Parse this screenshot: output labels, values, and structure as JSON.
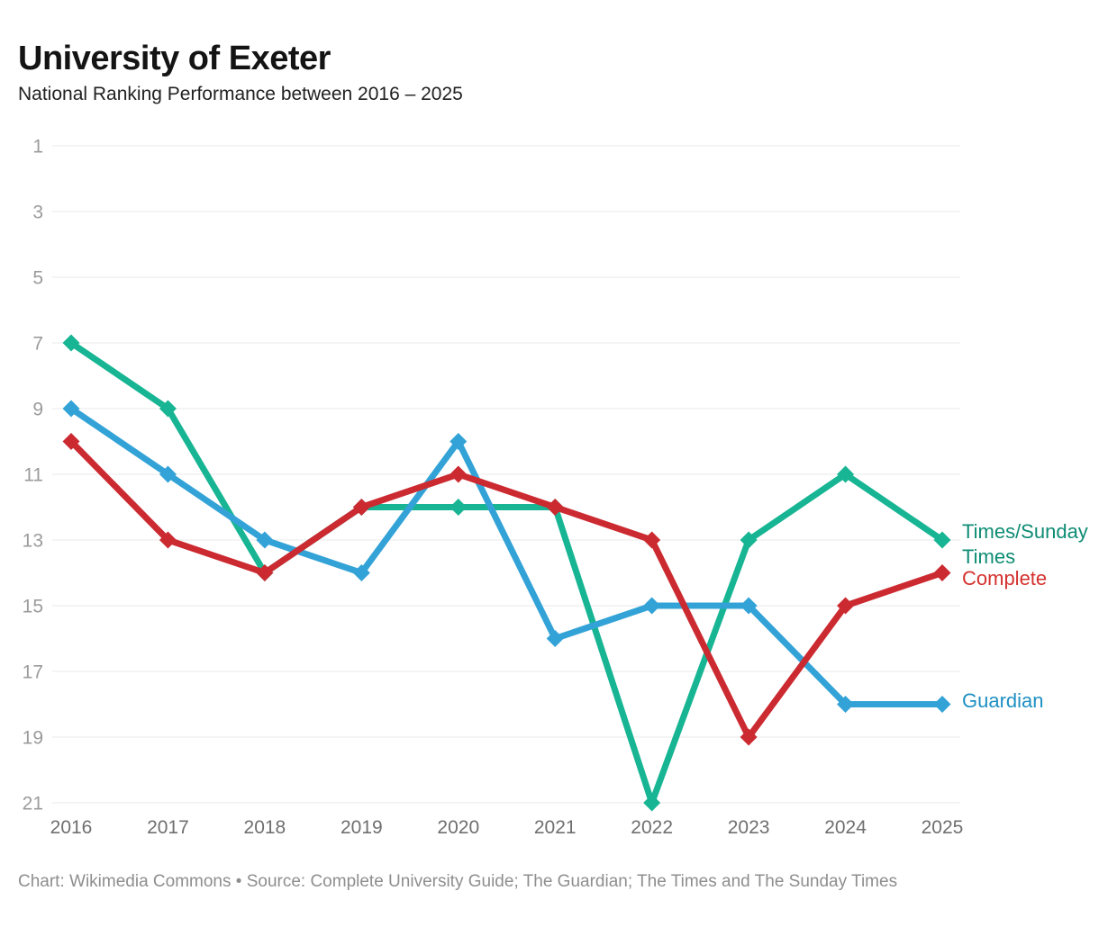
{
  "header": {
    "title": "University of Exeter",
    "subtitle": "National Ranking Performance between 2016 – 2025"
  },
  "chart_data": {
    "type": "line",
    "title": "University of Exeter",
    "subtitle": "National Ranking Performance between 2016 – 2025",
    "x": [
      2016,
      2017,
      2018,
      2019,
      2020,
      2021,
      2022,
      2023,
      2024,
      2025
    ],
    "series": [
      {
        "name": "Times/Sunday Times",
        "legend_lines": [
          "Times/Sunday",
          "Times"
        ],
        "color": "#17B593",
        "label_color": "#0E8C74",
        "values": [
          7,
          9,
          14,
          12,
          12,
          12,
          21,
          13,
          11,
          13
        ]
      },
      {
        "name": "Complete",
        "legend_lines": [
          "Complete"
        ],
        "color": "#CC2A31",
        "label_color": "#D3312E",
        "values": [
          10,
          13,
          14,
          12,
          11,
          12,
          13,
          19,
          15,
          14
        ]
      },
      {
        "name": "Guardian",
        "legend_lines": [
          "Guardian"
        ],
        "color": "#33A3D7",
        "label_color": "#1E90C2",
        "values": [
          9,
          11,
          13,
          14,
          10,
          16,
          15,
          15,
          18,
          18
        ]
      }
    ],
    "xlabel": "",
    "ylabel": "",
    "yticks": [
      1,
      3,
      5,
      7,
      9,
      11,
      13,
      15,
      17,
      19,
      21
    ],
    "ylim": [
      1,
      21
    ],
    "y_inverted": true,
    "grid": true,
    "gridline_color": "#e8e8e8",
    "legend_position": "right-of-line-ends",
    "marker": "diamond"
  },
  "footer": {
    "caption": "Chart: Wikimedia Commons • Source: Complete University Guide; The Guardian; The Times and The Sunday Times"
  }
}
